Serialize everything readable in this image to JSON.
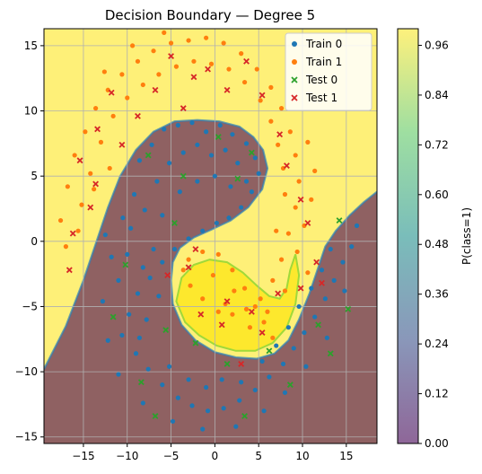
{
  "chart_data": {
    "type": "scatter",
    "title": "Decision Boundary — Degree 5",
    "xlabel": "",
    "ylabel": "",
    "xlim": [
      -19.5,
      18.5
    ],
    "ylim": [
      -15.5,
      16.3
    ],
    "x_ticks": [
      -15,
      -10,
      -5,
      0,
      5,
      10,
      15
    ],
    "y_ticks": [
      -15,
      -10,
      -5,
      0,
      5,
      10,
      15
    ],
    "grid": true,
    "legend_position": "top-right",
    "legend": [
      {
        "label": "Train 0",
        "marker": "circle",
        "color": "#1f77b4"
      },
      {
        "label": "Train 1",
        "marker": "circle",
        "color": "#ff7f0e"
      },
      {
        "label": "Test 0",
        "marker": "x",
        "color": "#2ca02c"
      },
      {
        "label": "Test 1",
        "marker": "x",
        "color": "#d62728"
      }
    ],
    "background": {
      "type": "probability_contour",
      "class1_color": "#fde725",
      "class0_color": "#440154",
      "alpha": 0.6
    },
    "colorbar": {
      "label": "P(class=1)",
      "ticks": [
        "0.00",
        "0.12",
        "0.24",
        "0.36",
        "0.48",
        "0.60",
        "0.72",
        "0.84",
        "0.96"
      ],
      "range": [
        0,
        1
      ]
    },
    "series": [
      {
        "name": "Train 0",
        "points": [
          [
            -12.5,
            0.5
          ],
          [
            -11.8,
            -1.2
          ],
          [
            -10.5,
            1.8
          ],
          [
            -9.2,
            3.6
          ],
          [
            -8.6,
            6.2
          ],
          [
            -7.2,
            7.4
          ],
          [
            -5.8,
            8.6
          ],
          [
            -4.2,
            8.9
          ],
          [
            -2.6,
            9.1
          ],
          [
            -1.0,
            8.4
          ],
          [
            0.6,
            8.9
          ],
          [
            2.0,
            8.2
          ],
          [
            3.6,
            7.5
          ],
          [
            4.6,
            6.4
          ],
          [
            5.0,
            5.2
          ],
          [
            4.2,
            3.8
          ],
          [
            3.0,
            2.6
          ],
          [
            1.6,
            1.8
          ],
          [
            0.2,
            1.4
          ],
          [
            -1.4,
            0.8
          ],
          [
            -3.0,
            0.2
          ],
          [
            -4.6,
            -0.6
          ],
          [
            -6.0,
            -1.6
          ],
          [
            -7.4,
            -2.8
          ],
          [
            -8.8,
            -4.0
          ],
          [
            -9.8,
            -5.6
          ],
          [
            -10.6,
            -7.2
          ],
          [
            -9.0,
            -8.6
          ],
          [
            -7.6,
            -9.8
          ],
          [
            -6.0,
            -11.0
          ],
          [
            -4.2,
            -12.0
          ],
          [
            -2.6,
            -12.6
          ],
          [
            -0.8,
            -13.0
          ],
          [
            1.0,
            -12.8
          ],
          [
            2.8,
            -12.2
          ],
          [
            4.6,
            -11.4
          ],
          [
            6.2,
            -10.4
          ],
          [
            7.8,
            -9.4
          ],
          [
            9.0,
            -8.2
          ],
          [
            10.2,
            -7.0
          ],
          [
            11.4,
            -5.8
          ],
          [
            12.6,
            -4.4
          ],
          [
            13.6,
            -3.0
          ],
          [
            14.6,
            -1.6
          ],
          [
            15.6,
            -0.4
          ],
          [
            16.2,
            1.2
          ],
          [
            -11.0,
            -3.0
          ],
          [
            -10.0,
            -1.0
          ],
          [
            -9.6,
            1.0
          ],
          [
            -8.0,
            2.4
          ],
          [
            -6.6,
            4.6
          ],
          [
            -5.2,
            6.0
          ],
          [
            -3.6,
            6.8
          ],
          [
            -2.0,
            7.4
          ],
          [
            -0.4,
            6.6
          ],
          [
            1.2,
            7.0
          ],
          [
            2.6,
            6.0
          ],
          [
            3.6,
            4.6
          ],
          [
            -7.0,
            -0.6
          ],
          [
            -8.2,
            -2.0
          ],
          [
            -6.4,
            -4.2
          ],
          [
            -7.8,
            -6.0
          ],
          [
            -8.6,
            -7.4
          ],
          [
            -5.2,
            -9.6
          ],
          [
            -3.0,
            -10.6
          ],
          [
            -1.0,
            -11.2
          ],
          [
            0.8,
            -10.6
          ],
          [
            3.0,
            -10.8
          ],
          [
            5.4,
            -9.2
          ],
          [
            7.0,
            -8.0
          ],
          [
            8.4,
            -6.6
          ],
          [
            9.6,
            -5.0
          ],
          [
            11.0,
            -3.6
          ],
          [
            12.2,
            -2.2
          ],
          [
            13.2,
            -0.6
          ],
          [
            14.8,
            -3.8
          ],
          [
            12.8,
            -7.4
          ],
          [
            10.4,
            -9.6
          ],
          [
            8.0,
            -11.6
          ],
          [
            5.6,
            -13.0
          ],
          [
            2.4,
            -14.2
          ],
          [
            -1.4,
            -14.4
          ],
          [
            -4.8,
            -13.8
          ],
          [
            -8.2,
            -12.4
          ],
          [
            -11.0,
            -10.2
          ],
          [
            -12.2,
            -7.6
          ],
          [
            -12.8,
            -4.6
          ],
          [
            -6.0,
            2.0
          ],
          [
            -4.0,
            3.8
          ],
          [
            -2.0,
            4.6
          ],
          [
            0.0,
            5.0
          ],
          [
            1.8,
            4.2
          ]
        ]
      },
      {
        "name": "Train 1",
        "points": [
          [
            -17.6,
            1.6
          ],
          [
            -16.8,
            4.2
          ],
          [
            -16.0,
            6.6
          ],
          [
            -14.8,
            8.4
          ],
          [
            -13.6,
            10.2
          ],
          [
            -12.2,
            11.6
          ],
          [
            -10.6,
            12.8
          ],
          [
            -8.8,
            13.8
          ],
          [
            -7.0,
            14.6
          ],
          [
            -5.0,
            15.2
          ],
          [
            -3.0,
            15.4
          ],
          [
            -1.0,
            15.6
          ],
          [
            1.0,
            15.2
          ],
          [
            3.0,
            14.4
          ],
          [
            4.8,
            13.2
          ],
          [
            6.4,
            11.8
          ],
          [
            7.6,
            10.2
          ],
          [
            8.6,
            8.4
          ],
          [
            9.2,
            6.6
          ],
          [
            9.6,
            4.6
          ],
          [
            9.2,
            2.6
          ],
          [
            8.4,
            0.6
          ],
          [
            7.6,
            -1.4
          ],
          [
            6.6,
            -3.0
          ],
          [
            5.2,
            -4.4
          ],
          [
            3.6,
            -5.2
          ],
          [
            2.0,
            -5.6
          ],
          [
            0.4,
            -5.4
          ],
          [
            -1.4,
            -4.4
          ],
          [
            -2.8,
            -3.4
          ],
          [
            -3.6,
            -2.2
          ],
          [
            -3.0,
            -1.4
          ],
          [
            -1.4,
            -0.8
          ],
          [
            0.4,
            -1.0
          ],
          [
            2.0,
            -2.2
          ],
          [
            3.4,
            -3.6
          ],
          [
            4.6,
            -5.0
          ],
          [
            5.6,
            -6.2
          ],
          [
            6.6,
            -7.4
          ],
          [
            -15.2,
            2.8
          ],
          [
            -14.2,
            5.2
          ],
          [
            -13.0,
            7.6
          ],
          [
            -11.6,
            9.6
          ],
          [
            -10.0,
            11.0
          ],
          [
            -8.2,
            12.0
          ],
          [
            -6.4,
            12.8
          ],
          [
            -4.4,
            13.4
          ],
          [
            -2.4,
            13.8
          ],
          [
            -0.4,
            13.6
          ],
          [
            1.6,
            13.2
          ],
          [
            3.4,
            12.2
          ],
          [
            5.2,
            10.8
          ],
          [
            6.4,
            9.2
          ],
          [
            7.2,
            7.4
          ],
          [
            7.8,
            5.6
          ],
          [
            8.0,
            3.6
          ],
          [
            10.6,
            7.6
          ],
          [
            11.4,
            5.4
          ],
          [
            11.0,
            3.2
          ],
          [
            10.2,
            1.2
          ],
          [
            9.4,
            -0.8
          ],
          [
            10.6,
            -2.4
          ],
          [
            -17.0,
            -0.4
          ],
          [
            -15.6,
            0.8
          ],
          [
            -12.6,
            13.0
          ],
          [
            -9.4,
            15.0
          ],
          [
            -5.8,
            16.0
          ],
          [
            -13.8,
            4.0
          ],
          [
            -12.0,
            5.6
          ],
          [
            2.2,
            -3.8
          ],
          [
            -0.2,
            -2.6
          ],
          [
            1.2,
            -4.8
          ],
          [
            4.0,
            -6.6
          ],
          [
            6.0,
            -5.4
          ],
          [
            8.0,
            -3.8
          ],
          [
            7.0,
            0.8
          ]
        ]
      },
      {
        "name": "Test 0",
        "points": [
          [
            -10.2,
            -1.8
          ],
          [
            -7.6,
            6.6
          ],
          [
            -5.6,
            -6.8
          ],
          [
            -3.6,
            5.0
          ],
          [
            -2.2,
            -7.8
          ],
          [
            0.4,
            8.0
          ],
          [
            1.4,
            -9.4
          ],
          [
            3.4,
            -13.4
          ],
          [
            4.2,
            6.8
          ],
          [
            6.2,
            -8.4
          ],
          [
            8.6,
            -11.0
          ],
          [
            11.8,
            -6.4
          ],
          [
            13.2,
            -8.6
          ],
          [
            14.2,
            1.6
          ],
          [
            15.2,
            -5.2
          ],
          [
            -8.4,
            -10.8
          ],
          [
            -11.6,
            -5.8
          ],
          [
            -6.8,
            -13.4
          ],
          [
            2.6,
            4.8
          ],
          [
            -4.6,
            1.4
          ]
        ]
      },
      {
        "name": "Test 1",
        "points": [
          [
            -16.6,
            -2.2
          ],
          [
            -16.2,
            0.6
          ],
          [
            -15.4,
            6.2
          ],
          [
            -14.2,
            2.6
          ],
          [
            -13.4,
            8.6
          ],
          [
            -11.8,
            11.4
          ],
          [
            -10.6,
            7.4
          ],
          [
            -8.8,
            9.6
          ],
          [
            -6.8,
            11.6
          ],
          [
            -5.0,
            14.2
          ],
          [
            -3.6,
            10.2
          ],
          [
            -2.4,
            12.6
          ],
          [
            -0.8,
            13.2
          ],
          [
            1.4,
            11.6
          ],
          [
            3.6,
            13.8
          ],
          [
            5.4,
            11.2
          ],
          [
            7.4,
            8.2
          ],
          [
            8.2,
            5.8
          ],
          [
            9.8,
            3.2
          ],
          [
            10.6,
            1.4
          ],
          [
            11.6,
            -1.6
          ],
          [
            9.8,
            -3.6
          ],
          [
            7.2,
            -4.0
          ],
          [
            5.4,
            -7.0
          ],
          [
            3.0,
            -9.4
          ],
          [
            1.4,
            -4.6
          ],
          [
            -1.6,
            -5.6
          ],
          [
            -3.0,
            -2.0
          ],
          [
            -5.4,
            -2.6
          ],
          [
            -2.2,
            -0.6
          ],
          [
            0.8,
            -6.4
          ],
          [
            4.2,
            -5.4
          ],
          [
            -13.6,
            4.4
          ],
          [
            12.2,
            -3.2
          ]
        ]
      }
    ]
  }
}
